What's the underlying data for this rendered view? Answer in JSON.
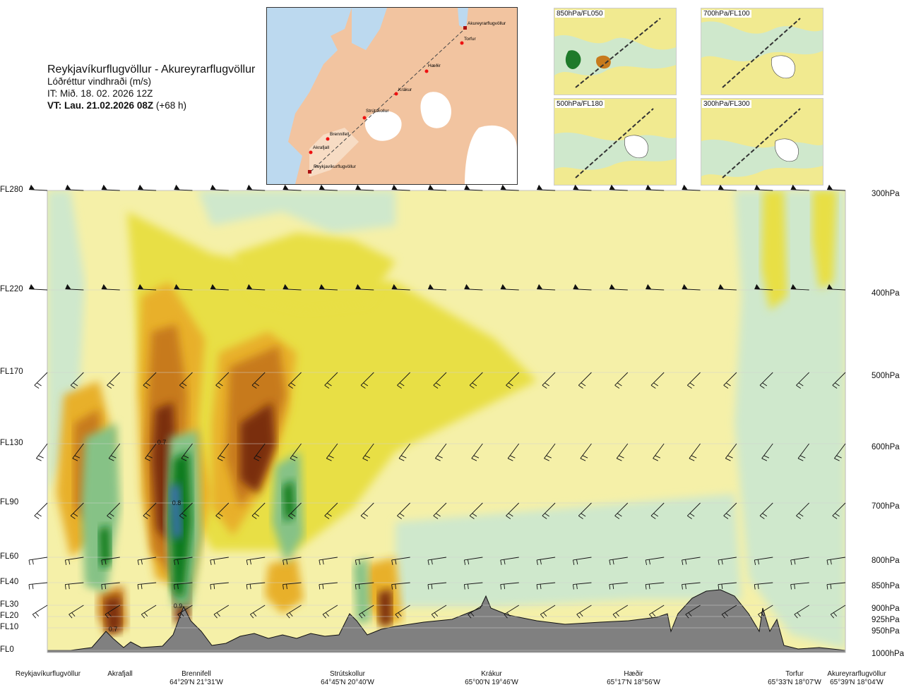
{
  "title": {
    "route": "Reykjavíkurflugvöllur - Akureyrarflugvöllur",
    "variable": "Lóðréttur vindhraði (m/s)",
    "it": "IT: Mið. 18. 02. 2026 12Z",
    "vt_bold": "VT: Lau. 21.02.2026 08Z",
    "vt_rest": "(+68 h)"
  },
  "map": {
    "places": [
      "Akureyrarflugvöllur",
      "Torfur",
      "Hæðir",
      "Krákur",
      "Strútskollur",
      "Brennifell",
      "Akrafjall",
      "Reykjavíkurflugvöllur"
    ]
  },
  "minimaps": [
    {
      "label": "850hPa/FL050"
    },
    {
      "label": "700hPa/FL100"
    },
    {
      "label": "500hPa/FL180"
    },
    {
      "label": "300hPa/FL300"
    }
  ],
  "colors": {
    "strong_up": "#7a2e0e",
    "up": "#c77a1c",
    "weak_up": "#e8b02a",
    "slight_up": "#e8df45",
    "neutral": "#f5f0a8",
    "slight_down": "#cfe8cc",
    "down": "#86c286",
    "strong_down": "#0f7a1a",
    "very_strong_down": "#3b6fb0",
    "terrain": "#808080"
  },
  "chart_data": {
    "type": "heatmap",
    "title": "Reykjavíkurflugvöllur - Akureyrarflugvöllur",
    "ylabel": "",
    "xlabel": "",
    "left_levels": [
      "FL280",
      "FL220",
      "FL170",
      "FL130",
      "FL90",
      "FL60",
      "FL40",
      "FL30",
      "FL20",
      "FL10",
      "FL0"
    ],
    "right_levels": [
      "300hPa",
      "400hPa",
      "500hPa",
      "600hPa",
      "700hPa",
      "800hPa",
      "850hPa",
      "900hPa",
      "925hPa",
      "950hPa",
      "1000hPa"
    ],
    "waypoints": [
      {
        "name": "Reykjavíkurflugvöllur",
        "coord": ""
      },
      {
        "name": "Akrafjall",
        "coord": ""
      },
      {
        "name": "Brennifell",
        "coord": "64°29'N 21°31'W"
      },
      {
        "name": "Strútskollur",
        "coord": "64°45'N 20°40'W"
      },
      {
        "name": "Krákur",
        "coord": "65°00'N 19°46'W"
      },
      {
        "name": "Hæðir",
        "coord": "65°17'N 18°56'W"
      },
      {
        "name": "Torfur",
        "coord": "65°33'N 18°07'W"
      },
      {
        "name": "Akureyrarflugvöllur",
        "coord": "65°39'N 18°04'W"
      }
    ],
    "annotations": [
      "0.7",
      "0.8",
      "0.9",
      "0.7"
    ]
  }
}
